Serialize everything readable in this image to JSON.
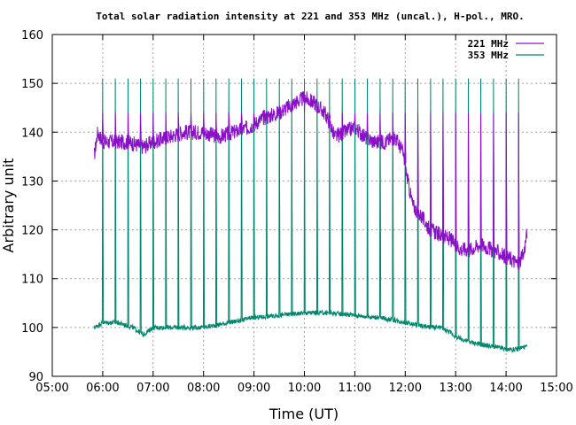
{
  "chart_data": {
    "type": "line",
    "title": "Total solar radiation intensity at 221 and 353 MHz (uncal.), H-pol., MRO.",
    "xlabel": "Time (UT)",
    "ylabel": "Arbitrary unit",
    "xlim": [
      5.0,
      15.0
    ],
    "ylim": [
      90,
      160
    ],
    "xticks": [
      5,
      6,
      7,
      8,
      9,
      10,
      11,
      12,
      13,
      14,
      15
    ],
    "xtick_labels": [
      "05:00",
      "06:00",
      "07:00",
      "08:00",
      "09:00",
      "10:00",
      "11:00",
      "12:00",
      "13:00",
      "14:00",
      "15:00"
    ],
    "yticks": [
      90,
      100,
      110,
      120,
      130,
      140,
      150,
      160
    ],
    "ytick_labels": [
      "90",
      "100",
      "110",
      "120",
      "130",
      "140",
      "150",
      "160"
    ],
    "grid": true,
    "legend_position": "top-right",
    "spike_times": [
      6.0,
      6.25,
      6.5,
      6.75,
      7.0,
      7.25,
      7.5,
      7.75,
      8.0,
      8.25,
      8.5,
      8.75,
      9.0,
      9.25,
      9.5,
      9.75,
      10.0,
      10.25,
      10.5,
      10.75,
      11.0,
      11.25,
      11.5,
      11.75,
      12.0,
      12.25,
      12.5,
      12.75,
      13.0,
      13.25,
      13.5,
      13.75,
      14.0,
      14.25
    ],
    "series": [
      {
        "name": "221 MHz",
        "color": "#8a10c8",
        "spike_peak": 144,
        "x": [
          5.83,
          5.9,
          6.0,
          6.2,
          6.5,
          6.8,
          7.0,
          7.3,
          7.6,
          8.0,
          8.3,
          8.6,
          8.9,
          9.2,
          9.5,
          9.8,
          10.0,
          10.2,
          10.4,
          10.5,
          10.6,
          10.8,
          11.0,
          11.2,
          11.4,
          11.6,
          11.8,
          11.95,
          12.05,
          12.15,
          12.3,
          12.5,
          12.7,
          12.9,
          13.1,
          13.3,
          13.5,
          13.7,
          13.9,
          14.1,
          14.25,
          14.35,
          14.42
        ],
        "y": [
          135,
          140,
          138,
          138,
          138,
          137,
          138,
          139,
          140,
          140,
          139,
          140,
          141,
          143,
          144,
          146,
          147,
          146,
          144,
          142,
          139,
          140,
          141,
          139,
          138,
          138,
          139,
          136,
          130,
          125,
          123,
          120,
          119,
          118,
          116,
          116,
          117,
          116,
          115,
          114,
          113,
          115,
          120
        ]
      },
      {
        "name": "353 MHz",
        "color": "#00876c",
        "spike_peak": 151,
        "x": [
          5.83,
          6.0,
          6.3,
          6.6,
          6.8,
          7.0,
          7.3,
          7.6,
          8.0,
          8.5,
          9.0,
          9.5,
          10.0,
          10.5,
          11.0,
          11.5,
          11.8,
          12.0,
          12.5,
          12.7,
          12.9,
          13.0,
          13.3,
          13.5,
          13.8,
          14.0,
          14.2,
          14.35,
          14.42
        ],
        "y": [
          100,
          101,
          101,
          100,
          98.5,
          100,
          100,
          100,
          100,
          101,
          102,
          102.5,
          103,
          103,
          102.5,
          102,
          101.5,
          101,
          100,
          100,
          99,
          98,
          97,
          96.5,
          96,
          95.5,
          95.5,
          96,
          96
        ]
      }
    ]
  }
}
